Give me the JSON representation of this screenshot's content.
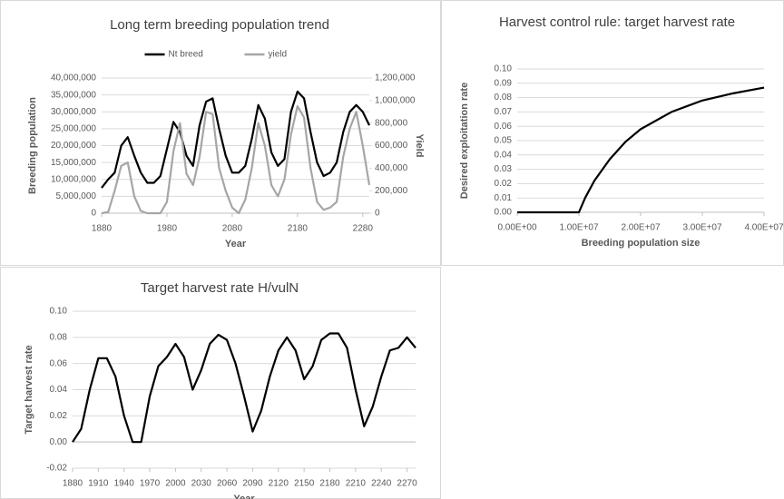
{
  "chart_data": [
    {
      "type": "line",
      "title": "Long term breeding population trend",
      "x_label": "Year",
      "y_label": "Breeding population",
      "y2_label": "Yield",
      "legend": "top",
      "grid": true,
      "x": [
        1880,
        1890,
        1900,
        1910,
        1920,
        1930,
        1940,
        1950,
        1960,
        1970,
        1980,
        1990,
        2000,
        2010,
        2020,
        2030,
        2040,
        2050,
        2060,
        2070,
        2080,
        2090,
        2100,
        2110,
        2120,
        2130,
        2140,
        2150,
        2160,
        2170,
        2180,
        2190,
        2200,
        2210,
        2220,
        2230,
        2240,
        2250,
        2260,
        2270,
        2280,
        2290
      ],
      "xlim": [
        1880,
        2290
      ],
      "xticks": [
        1880,
        1980,
        2080,
        2180,
        2280
      ],
      "ylim": [
        0,
        40000000
      ],
      "yticks": [
        0,
        {
          "value": 5000000,
          "label": "5,000,000"
        },
        {
          "value": 10000000,
          "label": "10,000,000"
        },
        {
          "value": 15000000,
          "label": "15,000,000"
        },
        {
          "value": 20000000,
          "label": "20,000,000"
        },
        {
          "value": 25000000,
          "label": "25,000,000"
        },
        {
          "value": 30000000,
          "label": "30,000,000"
        },
        {
          "value": 35000000,
          "label": "35,000,000"
        },
        {
          "value": 40000000,
          "label": "40,000,000"
        }
      ],
      "y2lim": [
        0,
        1200000
      ],
      "y2ticks": [
        0,
        {
          "value": 200000,
          "label": "200,000"
        },
        {
          "value": 400000,
          "label": "400,000"
        },
        {
          "value": 600000,
          "label": "600,000"
        },
        {
          "value": 800000,
          "label": "800,000"
        },
        {
          "value": 1000000,
          "label": "1,000,000"
        },
        {
          "value": 1200000,
          "label": "1,200,000"
        }
      ],
      "series": [
        {
          "name": "Nt breed",
          "color": "#000000",
          "values": [
            7500000,
            10000000,
            12000000,
            20000000,
            22500000,
            17000000,
            12000000,
            9000000,
            9000000,
            11000000,
            19000000,
            27000000,
            24000000,
            17000000,
            14000000,
            26000000,
            33000000,
            34000000,
            25000000,
            17000000,
            12000000,
            12000000,
            14000000,
            22000000,
            32000000,
            28000000,
            18000000,
            14000000,
            16000000,
            30000000,
            36000000,
            34000000,
            24000000,
            15000000,
            11000000,
            12000000,
            15000000,
            24000000,
            30000000,
            32000000,
            30000000,
            26000000
          ]
        },
        {
          "name": "yield",
          "color": "#a6a6a6",
          "axis": "y2",
          "values": [
            0,
            10000,
            200000,
            420000,
            450000,
            150000,
            20000,
            0,
            0,
            0,
            100000,
            550000,
            800000,
            350000,
            250000,
            500000,
            900000,
            880000,
            400000,
            200000,
            50000,
            0,
            120000,
            400000,
            800000,
            600000,
            250000,
            150000,
            300000,
            700000,
            950000,
            850000,
            400000,
            100000,
            30000,
            50000,
            100000,
            500000,
            750000,
            900000,
            600000,
            250000
          ]
        }
      ]
    },
    {
      "type": "line",
      "title": "Harvest control rule: target harvest rate",
      "x_label": "Breeding population size",
      "y_label": "Desired exploitation rate",
      "grid": true,
      "color": "#000000",
      "x": [
        0,
        10000000,
        11000000,
        12500000,
        15000000,
        17500000,
        20000000,
        25000000,
        30000000,
        35000000,
        40000000
      ],
      "values": [
        0,
        0,
        0.01,
        0.022,
        0.037,
        0.049,
        0.058,
        0.07,
        0.078,
        0.083,
        0.087
      ],
      "xlim": [
        0,
        40000000
      ],
      "xticks": [
        {
          "value": 0,
          "label": "0.00E+00"
        },
        {
          "value": 10000000,
          "label": "1.00E+07"
        },
        {
          "value": 20000000,
          "label": "2.00E+07"
        },
        {
          "value": 30000000,
          "label": "3.00E+07"
        },
        {
          "value": 40000000,
          "label": "4.00E+07"
        }
      ],
      "ylim": [
        0,
        0.1
      ],
      "yticks": [
        {
          "value": 0,
          "label": "0.00"
        },
        0.01,
        0.02,
        0.03,
        0.04,
        0.05,
        0.06,
        0.07,
        0.08,
        0.09,
        {
          "value": 0.1,
          "label": "0.10"
        }
      ]
    },
    {
      "type": "line",
      "title": "Target harvest rate H/vulN",
      "x_label": "Year",
      "y_label": "Target harvest rate",
      "grid": true,
      "color": "#000000",
      "x": [
        1880,
        1890,
        1900,
        1910,
        1920,
        1930,
        1940,
        1950,
        1960,
        1970,
        1980,
        1990,
        2000,
        2010,
        2020,
        2030,
        2040,
        2050,
        2060,
        2070,
        2080,
        2090,
        2100,
        2110,
        2120,
        2130,
        2140,
        2150,
        2160,
        2170,
        2180,
        2190,
        2200,
        2210,
        2220,
        2230,
        2240,
        2250,
        2260,
        2270,
        2280
      ],
      "values": [
        0,
        0.01,
        0.04,
        0.064,
        0.064,
        0.05,
        0.02,
        0,
        0,
        0.035,
        0.058,
        0.065,
        0.075,
        0.065,
        0.04,
        0.055,
        0.075,
        0.082,
        0.078,
        0.06,
        0.035,
        0.008,
        0.024,
        0.05,
        0.07,
        0.08,
        0.07,
        0.048,
        0.058,
        0.078,
        0.083,
        0.083,
        0.072,
        0.04,
        0.012,
        0.027,
        0.05,
        0.07,
        0.072,
        0.08,
        0.072
      ],
      "xlim": [
        1880,
        2280
      ],
      "xticks": [
        1880,
        1910,
        1940,
        1970,
        2000,
        2030,
        2060,
        2090,
        2120,
        2150,
        2180,
        2210,
        2240,
        2270
      ],
      "ylim": [
        -0.02,
        0.1
      ],
      "yticks": [
        -0.02,
        {
          "value": 0,
          "label": "0.00"
        },
        0.02,
        0.04,
        0.06,
        0.08,
        {
          "value": 0.1,
          "label": "0.10"
        }
      ]
    }
  ]
}
